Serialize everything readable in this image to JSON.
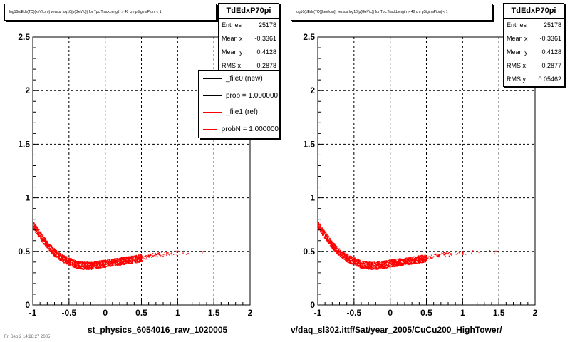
{
  "chart_data": [
    {
      "type": "scatter",
      "title": "log10(dEdx(TO)(keV/cm)) versus log10(p(GeV/c)) for Tpc.TrackLength > 40 cm pSigmaPion| < 1",
      "xlabel": "st_physics_6054016_raw_1020005",
      "ylabel": "",
      "xlim": [
        -1,
        2
      ],
      "ylim": [
        0,
        2.5
      ],
      "x_ticks": [
        "-1",
        "-0.5",
        "0",
        "0.5",
        "1",
        "1.5",
        "2"
      ],
      "y_ticks": [
        "0",
        "0.5",
        "1",
        "1.5",
        "2",
        "2.5"
      ],
      "grid": true,
      "series": [
        {
          "name": "_file0 (new)",
          "x": [
            -1.0,
            -0.9,
            -0.8,
            -0.7,
            -0.6,
            -0.5,
            -0.4,
            -0.3,
            -0.2,
            -0.1,
            0.0,
            0.1,
            0.2,
            0.3,
            0.4,
            0.5,
            0.6,
            0.7,
            0.8,
            1.0,
            1.2,
            1.6
          ],
          "y": [
            0.75,
            0.65,
            0.56,
            0.49,
            0.44,
            0.41,
            0.38,
            0.37,
            0.37,
            0.38,
            0.39,
            0.4,
            0.41,
            0.42,
            0.43,
            0.44,
            0.46,
            0.47,
            0.48,
            0.49,
            0.5,
            0.5
          ]
        },
        {
          "name": "_file1 (ref)",
          "x": [
            -1.0,
            -0.9,
            -0.8,
            -0.7,
            -0.6,
            -0.5,
            -0.4,
            -0.3,
            -0.2,
            -0.1,
            0.0,
            0.1,
            0.2,
            0.3,
            0.4,
            0.5,
            0.6,
            0.7,
            0.8,
            1.0,
            1.2,
            1.6
          ],
          "y": [
            0.75,
            0.65,
            0.56,
            0.49,
            0.44,
            0.41,
            0.38,
            0.37,
            0.37,
            0.38,
            0.39,
            0.4,
            0.41,
            0.42,
            0.43,
            0.44,
            0.46,
            0.47,
            0.48,
            0.49,
            0.5,
            0.5
          ]
        }
      ],
      "stats": {
        "name": "TdEdxP70pi",
        "rows": [
          {
            "label": "Entries",
            "value": "25178"
          },
          {
            "label": "Mean x",
            "value": "-0.3361"
          },
          {
            "label": "Mean y",
            "value": "0.4128"
          },
          {
            "label": "RMS x",
            "value": "0.2878"
          }
        ]
      },
      "legend": {
        "placement": "top-right",
        "entries": [
          {
            "label": "_file0 (new)",
            "color": "#000000"
          },
          {
            "label": "prob = 1.000000",
            "color": "#000000"
          },
          {
            "label": "_file1 (ref)",
            "color": "#ff0000"
          },
          {
            "label": "probN = 1.000000",
            "color": "#ff0000"
          }
        ]
      }
    },
    {
      "type": "scatter",
      "title": "log10(dEdx(TO)(keV/cm)) versus log10(p(GeV/c)) for Tpc.TrackLength > 40 cm pSigmaPion| < 1",
      "xlabel": "v/daq_sl302.ittf/Sat/year_2005/CuCu200_HighTower/",
      "ylabel": "",
      "xlim": [
        -1,
        2
      ],
      "ylim": [
        0,
        2.5
      ],
      "x_ticks": [
        "-1",
        "-0.5",
        "0",
        "0.5",
        "1",
        "1.5",
        "2"
      ],
      "y_ticks": [
        "0",
        "0.5",
        "1",
        "1.5",
        "2",
        "2.5"
      ],
      "grid": true,
      "series": [
        {
          "name": "",
          "x": [
            -1.0,
            -0.9,
            -0.8,
            -0.7,
            -0.6,
            -0.5,
            -0.4,
            -0.3,
            -0.2,
            -0.1,
            0.0,
            0.1,
            0.2,
            0.3,
            0.4,
            0.5,
            0.6,
            0.7,
            0.8,
            1.0,
            1.2,
            1.6
          ],
          "y": [
            0.75,
            0.65,
            0.56,
            0.49,
            0.44,
            0.41,
            0.38,
            0.37,
            0.37,
            0.38,
            0.39,
            0.4,
            0.41,
            0.42,
            0.43,
            0.44,
            0.46,
            0.47,
            0.48,
            0.49,
            0.5,
            0.5
          ]
        }
      ],
      "stats": {
        "name": "TdEdxP70pi",
        "rows": [
          {
            "label": "Entries",
            "value": "25178"
          },
          {
            "label": "Mean x",
            "value": "-0.3361"
          },
          {
            "label": "Mean y",
            "value": "0.4128"
          },
          {
            "label": "RMS x",
            "value": "0.2877"
          },
          {
            "label": "RMS y",
            "value": "0.05462"
          }
        ]
      }
    }
  ],
  "footer": "Fri Sep 2 14:28:27 2005",
  "colors": {
    "data": "#ff0000",
    "axis": "#000000",
    "grid": "#000000",
    "background": "#ffffff"
  }
}
